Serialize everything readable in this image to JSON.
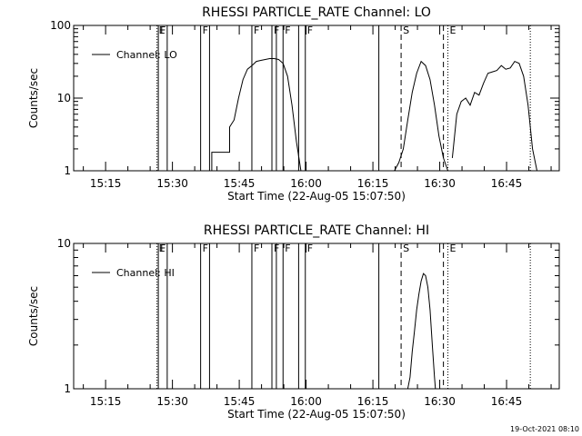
{
  "chart_data": [
    {
      "type": "line",
      "title": "RHESSI PARTICLE_RATE Channel: LO",
      "xlabel": "Start Time (22-Aug-05 15:07:50)",
      "ylabel": "Counts/sec",
      "yscale": "log",
      "ylim": [
        1,
        100
      ],
      "yticks": [
        "1",
        "10",
        "100"
      ],
      "xlim_min": [
        0,
        109
      ],
      "xtick_min": [
        7.17,
        22.17,
        37.17,
        52.17,
        67.17,
        82.17,
        97.17
      ],
      "xticks": [
        "15:15",
        "15:30",
        "15:45",
        "16:00",
        "16:15",
        "16:30",
        "16:45"
      ],
      "legend": "Channel: LO",
      "legend_placement": "top-left",
      "grid": false,
      "flag_lines": [
        {
          "x": 18.7,
          "style": "dotted",
          "label": "E"
        },
        {
          "x": 19.0,
          "style": "solid",
          "label": "F"
        },
        {
          "x": 21.0,
          "style": "solid",
          "label": ""
        },
        {
          "x": 28.5,
          "style": "solid",
          "label": "F"
        },
        {
          "x": 30.5,
          "style": "solid",
          "label": ""
        },
        {
          "x": 40.0,
          "style": "solid",
          "label": "F"
        },
        {
          "x": 44.5,
          "style": "solid",
          "label": "F"
        },
        {
          "x": 45.5,
          "style": "solid",
          "label": ""
        },
        {
          "x": 47.0,
          "style": "solid",
          "label": "F"
        },
        {
          "x": 50.5,
          "style": "solid",
          "label": ""
        },
        {
          "x": 52.0,
          "style": "solid",
          "label": "F"
        },
        {
          "x": 68.5,
          "style": "solid",
          "label": ""
        },
        {
          "x": 73.5,
          "style": "dashed",
          "label": "S"
        },
        {
          "x": 83.0,
          "style": "dashed",
          "label": ""
        },
        {
          "x": 84.0,
          "style": "dotted",
          "label": "E"
        },
        {
          "x": 102.5,
          "style": "dotted",
          "label": ""
        }
      ],
      "series": [
        {
          "name": "Channel: LO",
          "segments": [
            [
              [
                31,
                1
              ],
              [
                31,
                1.8
              ],
              [
                35,
                1.8
              ],
              [
                35,
                4
              ],
              [
                36,
                5
              ],
              [
                37,
                10
              ],
              [
                38,
                18
              ],
              [
                39,
                25
              ],
              [
                40,
                28
              ],
              [
                41,
                32
              ],
              [
                42,
                33
              ],
              [
                43,
                34
              ],
              [
                44,
                35
              ],
              [
                45,
                35
              ],
              [
                46,
                34
              ],
              [
                47,
                30
              ],
              [
                48,
                20
              ],
              [
                49,
                8
              ],
              [
                50,
                2.5
              ],
              [
                51,
                1
              ]
            ],
            [
              [
                72,
                1
              ],
              [
                73,
                1.3
              ],
              [
                74,
                2
              ],
              [
                75,
                5
              ],
              [
                76,
                12
              ],
              [
                77,
                22
              ],
              [
                78,
                32
              ],
              [
                79,
                28
              ],
              [
                80,
                18
              ],
              [
                81,
                8
              ],
              [
                82,
                3
              ],
              [
                83,
                1.5
              ],
              [
                84,
                1
              ]
            ],
            [
              [
                85,
                1.5
              ],
              [
                86,
                6
              ],
              [
                87,
                9
              ],
              [
                88,
                10
              ],
              [
                89,
                8
              ],
              [
                90,
                12
              ],
              [
                91,
                11
              ],
              [
                92,
                16
              ],
              [
                93,
                22
              ],
              [
                94,
                23
              ],
              [
                95,
                24
              ],
              [
                96,
                28
              ],
              [
                97,
                25
              ],
              [
                98,
                26
              ],
              [
                99,
                32
              ],
              [
                100,
                30
              ],
              [
                101,
                20
              ],
              [
                102,
                8
              ],
              [
                103,
                2
              ],
              [
                104,
                1
              ]
            ]
          ]
        }
      ]
    },
    {
      "type": "line",
      "title": "RHESSI PARTICLE_RATE Channel: HI",
      "xlabel": "Start Time (22-Aug-05 15:07:50)",
      "ylabel": "Counts/sec",
      "yscale": "log",
      "ylim": [
        1,
        10
      ],
      "yticks": [
        "1",
        "10"
      ],
      "xlim_min": [
        0,
        109
      ],
      "xtick_min": [
        7.17,
        22.17,
        37.17,
        52.17,
        67.17,
        82.17,
        97.17
      ],
      "xticks": [
        "15:15",
        "15:30",
        "15:45",
        "16:00",
        "16:15",
        "16:30",
        "16:45"
      ],
      "legend": "Channel: HI",
      "legend_placement": "top-left",
      "grid": false,
      "flag_lines": [
        {
          "x": 18.7,
          "style": "dotted",
          "label": "E"
        },
        {
          "x": 19.0,
          "style": "solid",
          "label": "F"
        },
        {
          "x": 21.0,
          "style": "solid",
          "label": ""
        },
        {
          "x": 28.5,
          "style": "solid",
          "label": "F"
        },
        {
          "x": 30.5,
          "style": "solid",
          "label": ""
        },
        {
          "x": 40.0,
          "style": "solid",
          "label": "F"
        },
        {
          "x": 44.5,
          "style": "solid",
          "label": "F"
        },
        {
          "x": 45.5,
          "style": "solid",
          "label": ""
        },
        {
          "x": 47.0,
          "style": "solid",
          "label": "F"
        },
        {
          "x": 50.5,
          "style": "solid",
          "label": ""
        },
        {
          "x": 52.0,
          "style": "solid",
          "label": "F"
        },
        {
          "x": 68.5,
          "style": "solid",
          "label": ""
        },
        {
          "x": 73.5,
          "style": "dashed",
          "label": "S"
        },
        {
          "x": 83.0,
          "style": "dashed",
          "label": ""
        },
        {
          "x": 84.0,
          "style": "dotted",
          "label": "E"
        },
        {
          "x": 102.5,
          "style": "dotted",
          "label": ""
        }
      ],
      "series": [
        {
          "name": "Channel: HI",
          "segments": [
            [
              [
                75,
                1
              ],
              [
                75.5,
                1.2
              ],
              [
                76,
                1.8
              ],
              [
                76.5,
                2.5
              ],
              [
                77,
                3.5
              ],
              [
                77.5,
                4.5
              ],
              [
                78,
                5.5
              ],
              [
                78.5,
                6.2
              ],
              [
                79,
                6.0
              ],
              [
                79.5,
                5.0
              ],
              [
                80,
                3.5
              ],
              [
                80.5,
                2.0
              ],
              [
                81,
                1.2
              ],
              [
                81.2,
                1
              ]
            ]
          ]
        }
      ]
    }
  ],
  "footer": {
    "timestamp": "19-Oct-2021 08:10"
  }
}
